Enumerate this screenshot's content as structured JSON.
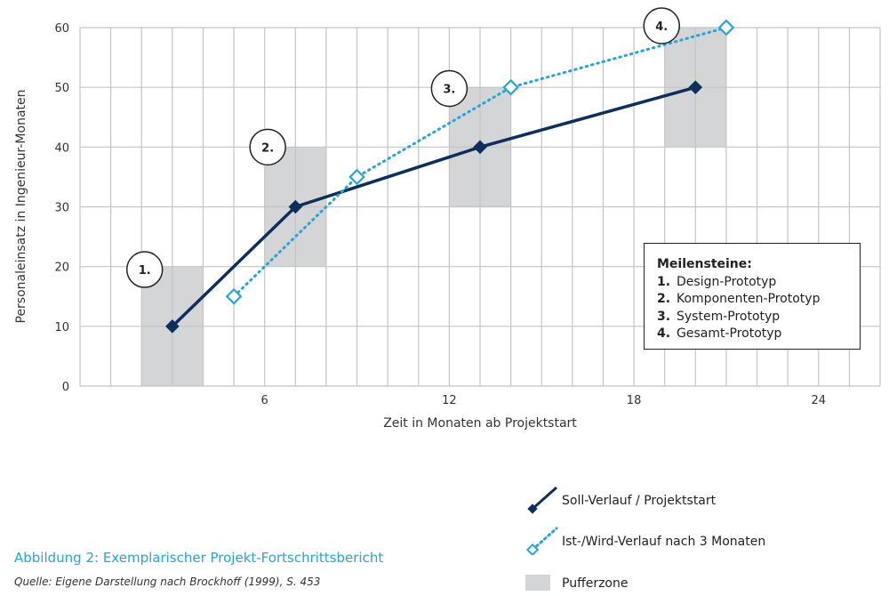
{
  "chart_data": {
    "type": "line",
    "xlabel": "Zeit in Monaten ab Projektstart",
    "ylabel": "Personaleinsatz in Ingenieur-Monaten",
    "xlim": [
      0,
      26
    ],
    "ylim": [
      0,
      60
    ],
    "x_ticks": [
      6,
      12,
      18,
      24
    ],
    "y_ticks": [
      0,
      10,
      20,
      30,
      40,
      50,
      60
    ],
    "grid": true,
    "series": [
      {
        "name": "Soll-Verlauf / Projektstart",
        "style": "solid",
        "color": "#0e2f5a",
        "marker": "filled-diamond",
        "x": [
          3,
          7,
          13,
          20
        ],
        "y": [
          10,
          30,
          40,
          50
        ]
      },
      {
        "name": "Ist-/Wird-Verlauf nach 3 Monaten",
        "style": "dotted",
        "color": "#29a4d6",
        "marker": "open-diamond",
        "x": [
          5,
          9,
          14,
          21
        ],
        "y": [
          15,
          35,
          50,
          60
        ]
      }
    ],
    "buffer_zones": [
      {
        "x": [
          2,
          4
        ],
        "y": [
          0,
          20
        ]
      },
      {
        "x": [
          6,
          8
        ],
        "y": [
          20,
          40
        ]
      },
      {
        "x": [
          12,
          14
        ],
        "y": [
          30,
          50
        ]
      },
      {
        "x": [
          19,
          21
        ],
        "y": [
          40,
          60
        ]
      }
    ],
    "milestone_markers": [
      {
        "label": "1.",
        "x": 2.1,
        "y": 19.5
      },
      {
        "label": "2.",
        "x": 6.1,
        "y": 40.0
      },
      {
        "label": "3.",
        "x": 12.0,
        "y": 49.8
      },
      {
        "label": "4.",
        "x": 18.9,
        "y": 60.3
      }
    ],
    "milestones_legend": {
      "title": "Meilensteine:",
      "items": [
        {
          "num": "1.",
          "text": "Design-Prototyp"
        },
        {
          "num": "2.",
          "text": "Komponenten-Prototyp"
        },
        {
          "num": "3.",
          "text": "System-Prototyp"
        },
        {
          "num": "4.",
          "text": "Gesamt-Prototyp"
        }
      ]
    },
    "legend": {
      "soll": "Soll-Verlauf / Projektstart",
      "ist": "Ist-/Wird-Verlauf nach 3 Monaten",
      "puffer": "Pufferzone"
    },
    "colors": {
      "soll": "#0e2f5a",
      "ist": "#29a4d6",
      "buffer": "#d4d5d7",
      "grid": "#c4c4c4"
    }
  },
  "caption": "Abbildung 2: Exemplarischer Projekt-Fortschrittsbericht",
  "source": "Quelle: Eigene Darstellung nach Brockhoff (1999), S. 453"
}
